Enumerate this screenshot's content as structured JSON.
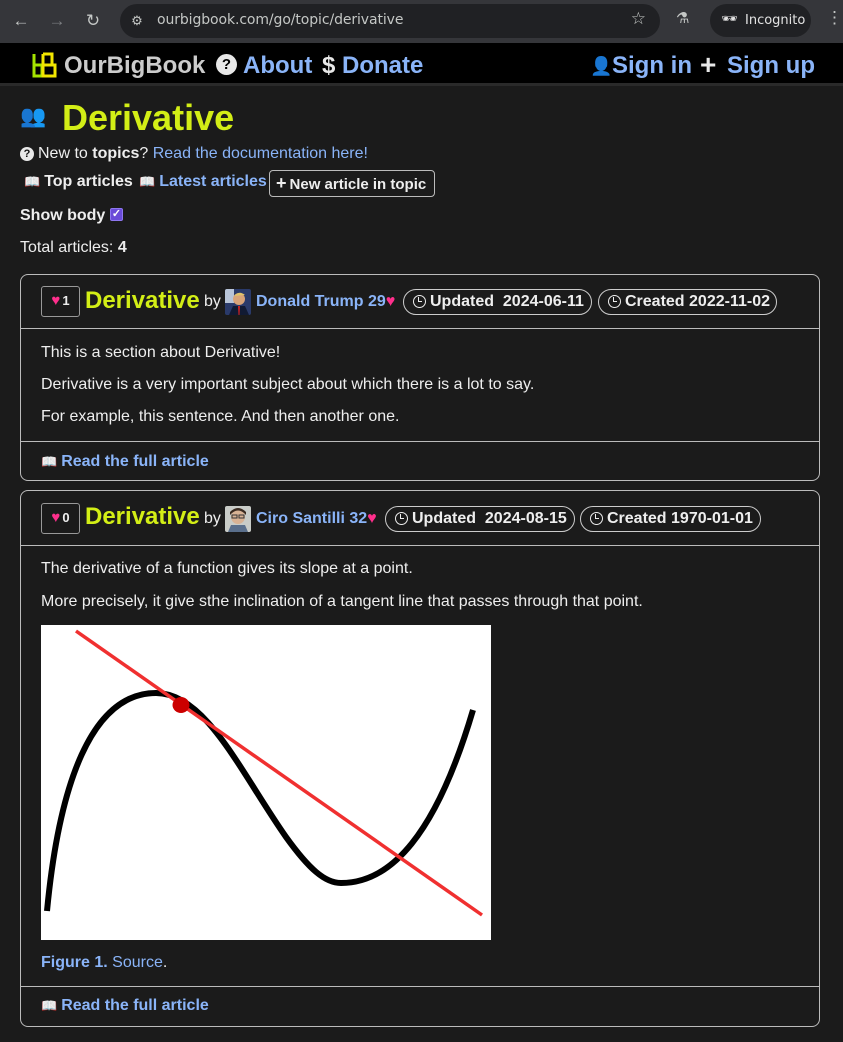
{
  "browser": {
    "url": "ourbigbook.com/go/topic/derivative",
    "incognito_label": "Incognito",
    "icons": [
      "back-icon",
      "forward-icon",
      "reload-icon",
      "site-info-icon",
      "star-icon",
      "labs-icon",
      "incognito-icon",
      "menu-icon"
    ]
  },
  "site": {
    "brand": "OurBigBook",
    "about": "About",
    "donate": "Donate",
    "sign_in": "Sign in",
    "sign_up": "Sign up",
    "colors": {
      "title": "#d3ee16",
      "link": "#8ab4f8",
      "heart": "#ff2f8c",
      "background": "#1b1b1b"
    }
  },
  "topic": {
    "title": "Derivative",
    "new_to_prefix": "New to ",
    "new_to_bold": "topics",
    "new_to_suffix": "? ",
    "doc_link": "Read the documentation here!",
    "tab_top": "Top articles",
    "tab_latest": "Latest articles",
    "new_article": "New article in topic",
    "show_body": "Show body",
    "show_body_checked": true,
    "total_label": "Total articles: ",
    "total_count": "4"
  },
  "articles": [
    {
      "likes": "1",
      "title": "Derivative",
      "by": "by",
      "author": "Donald Trump 29",
      "updated_label": "Updated",
      "updated_date": "2024-06-11",
      "created_label": "Created",
      "created_date": "2022-11-02",
      "paragraphs": [
        "This is a section about Derivative!",
        "Derivative is a very important subject about which there is a lot to say.",
        "For example, this sentence. And then another one."
      ],
      "read_full": "Read the full article"
    },
    {
      "likes": "0",
      "title": "Derivative",
      "by": "by",
      "author": "Ciro Santilli 32",
      "updated_label": "Updated",
      "updated_date": "2024-08-15",
      "created_label": "Created",
      "created_date": "1970-01-01",
      "paragraphs": [
        "The derivative of a function gives its slope at a point.",
        "More precisely, it give sthe inclination of a tangent line that passes through that point."
      ],
      "figure_label": "Figure 1.",
      "figure_source": "Source",
      "read_full": "Read the full article"
    }
  ]
}
